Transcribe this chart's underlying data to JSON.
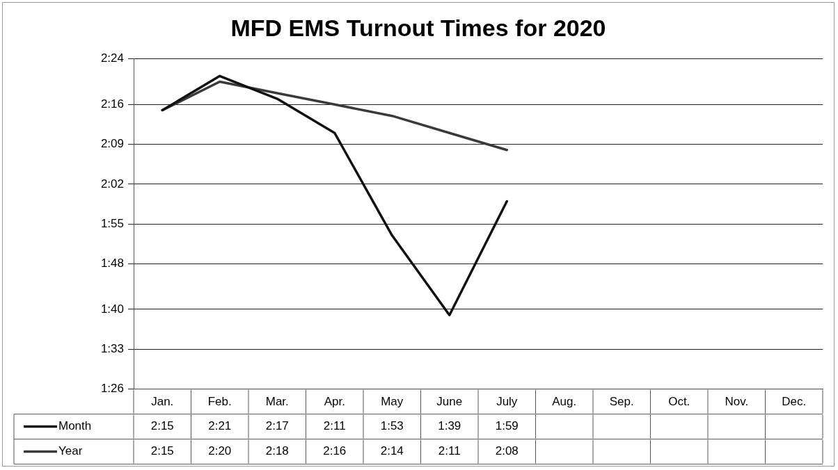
{
  "chart_data": {
    "type": "line",
    "title": "MFD EMS Turnout Times for 2020",
    "categories": [
      "Jan.",
      "Feb.",
      "Mar.",
      "Apr.",
      "May",
      "June",
      "July",
      "Aug.",
      "Sep.",
      "Oct.",
      "Nov.",
      "Dec."
    ],
    "series": [
      {
        "name": "Month",
        "color": "#111111",
        "values": [
          135,
          141,
          137,
          131,
          113,
          99,
          119,
          null,
          null,
          null,
          null,
          null
        ],
        "value_labels": [
          "2:15",
          "2:21",
          "2:17",
          "2:11",
          "1:53",
          "1:39",
          "1:59",
          null,
          null,
          null,
          null,
          null
        ]
      },
      {
        "name": "Year",
        "color": "#3a3a3a",
        "values": [
          135,
          140,
          138,
          136,
          134,
          131,
          128,
          null,
          null,
          null,
          null,
          null
        ],
        "value_labels": [
          "2:15",
          "2:20",
          "2:18",
          "2:16",
          "2:14",
          "2:11",
          "2:08",
          null,
          null,
          null,
          null,
          null
        ]
      }
    ],
    "ylim": [
      86,
      144
    ],
    "yticks": [
      {
        "value": 86,
        "label": "1:26"
      },
      {
        "value": 93,
        "label": "1:33"
      },
      {
        "value": 100,
        "label": "1:40"
      },
      {
        "value": 108,
        "label": "1:48"
      },
      {
        "value": 115,
        "label": "1:55"
      },
      {
        "value": 122,
        "label": "2:02"
      },
      {
        "value": 129,
        "label": "2:09"
      },
      {
        "value": 136,
        "label": "2:16"
      },
      {
        "value": 144,
        "label": "2:24"
      }
    ],
    "grid": "y",
    "legend": "bottom",
    "marker": "none",
    "line_style": "solid"
  }
}
